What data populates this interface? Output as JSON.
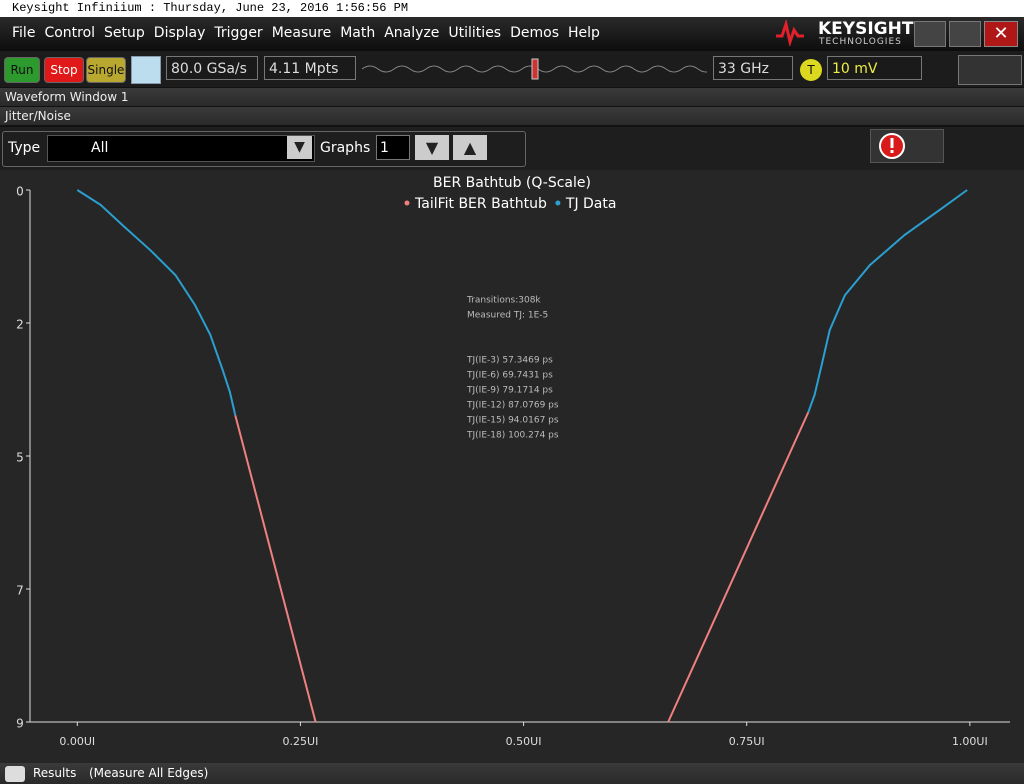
{
  "window": {
    "title": "Keysight Infiniium : Thursday, June 23, 2016 1:56:56 PM"
  },
  "menu": [
    "File",
    "Control",
    "Setup",
    "Display",
    "Trigger",
    "Measure",
    "Math",
    "Analyze",
    "Utilities",
    "Demos",
    "Help"
  ],
  "logo": {
    "name": "KEYSIGHT",
    "subtitle": "TECHNOLOGIES"
  },
  "toolbar": {
    "run": "Run",
    "stop": "Stop",
    "single": "Single",
    "sample_rate": "80.0 GSa/s",
    "memory_depth": "4.11 Mpts",
    "bandwidth": "33 GHz",
    "trigger_label": "T",
    "trigger_level": "10 mV"
  },
  "panels": {
    "waveform_window": "Waveform Window 1",
    "jitter_noise": "Jitter/Noise",
    "type_label": "Type",
    "type_value": "All",
    "graphs_label": "Graphs",
    "graphs_value": "1"
  },
  "status": {
    "results": "Results",
    "mode": "(Measure All Edges)"
  },
  "chart_data": {
    "type": "line",
    "title": "BER Bathtub (Q-Scale)",
    "series": [
      {
        "name": "TailFit BER Bathtub",
        "color": "#f08080",
        "x": [
          0.177,
          0.267,
          null,
          0.662,
          0.819
        ],
        "values": [
          3.81,
          9.0,
          null,
          9.0,
          3.76
        ]
      },
      {
        "name": "TJ Data",
        "color": "#2a9fd0",
        "x": [
          0.0,
          0.026,
          0.054,
          0.082,
          0.11,
          0.132,
          0.149,
          0.163,
          0.171,
          0.177,
          null,
          0.819,
          0.826,
          0.834,
          0.843,
          0.86,
          0.888,
          0.927,
          0.966,
          0.997
        ],
        "values": [
          0.0,
          0.25,
          0.64,
          1.02,
          1.44,
          1.95,
          2.45,
          3.05,
          3.42,
          3.81,
          null,
          3.76,
          3.47,
          2.96,
          2.37,
          1.78,
          1.27,
          0.76,
          0.34,
          0.0
        ]
      }
    ],
    "xlim": [
      -0.053,
      1.045
    ],
    "ylim": [
      0,
      9
    ],
    "y_reversed": true,
    "xticks": [
      {
        "value": 0,
        "label": "0.00UI"
      },
      {
        "value": 0.25,
        "label": "0.25UI"
      },
      {
        "value": 0.5,
        "label": "0.50UI"
      },
      {
        "value": 0.75,
        "label": "0.75UI"
      },
      {
        "value": 1,
        "label": "1.00UI"
      }
    ],
    "yticks": [
      0,
      {
        "value": 2.25,
        "label": "2"
      },
      {
        "value": 4.5,
        "label": "5"
      },
      {
        "value": 6.75,
        "label": "7"
      },
      9
    ],
    "annotations": [
      "Transitions:308k",
      "Measured TJ: 1E-5",
      "TJ(IE-3)  57.3469 ps",
      "TJ(IE-6)  69.7431 ps",
      "TJ(IE-9)  79.1714 ps",
      "TJ(IE-12)  87.0769 ps",
      "TJ(IE-15)  94.0167 ps",
      "TJ(IE-18)  100.274 ps"
    ]
  }
}
